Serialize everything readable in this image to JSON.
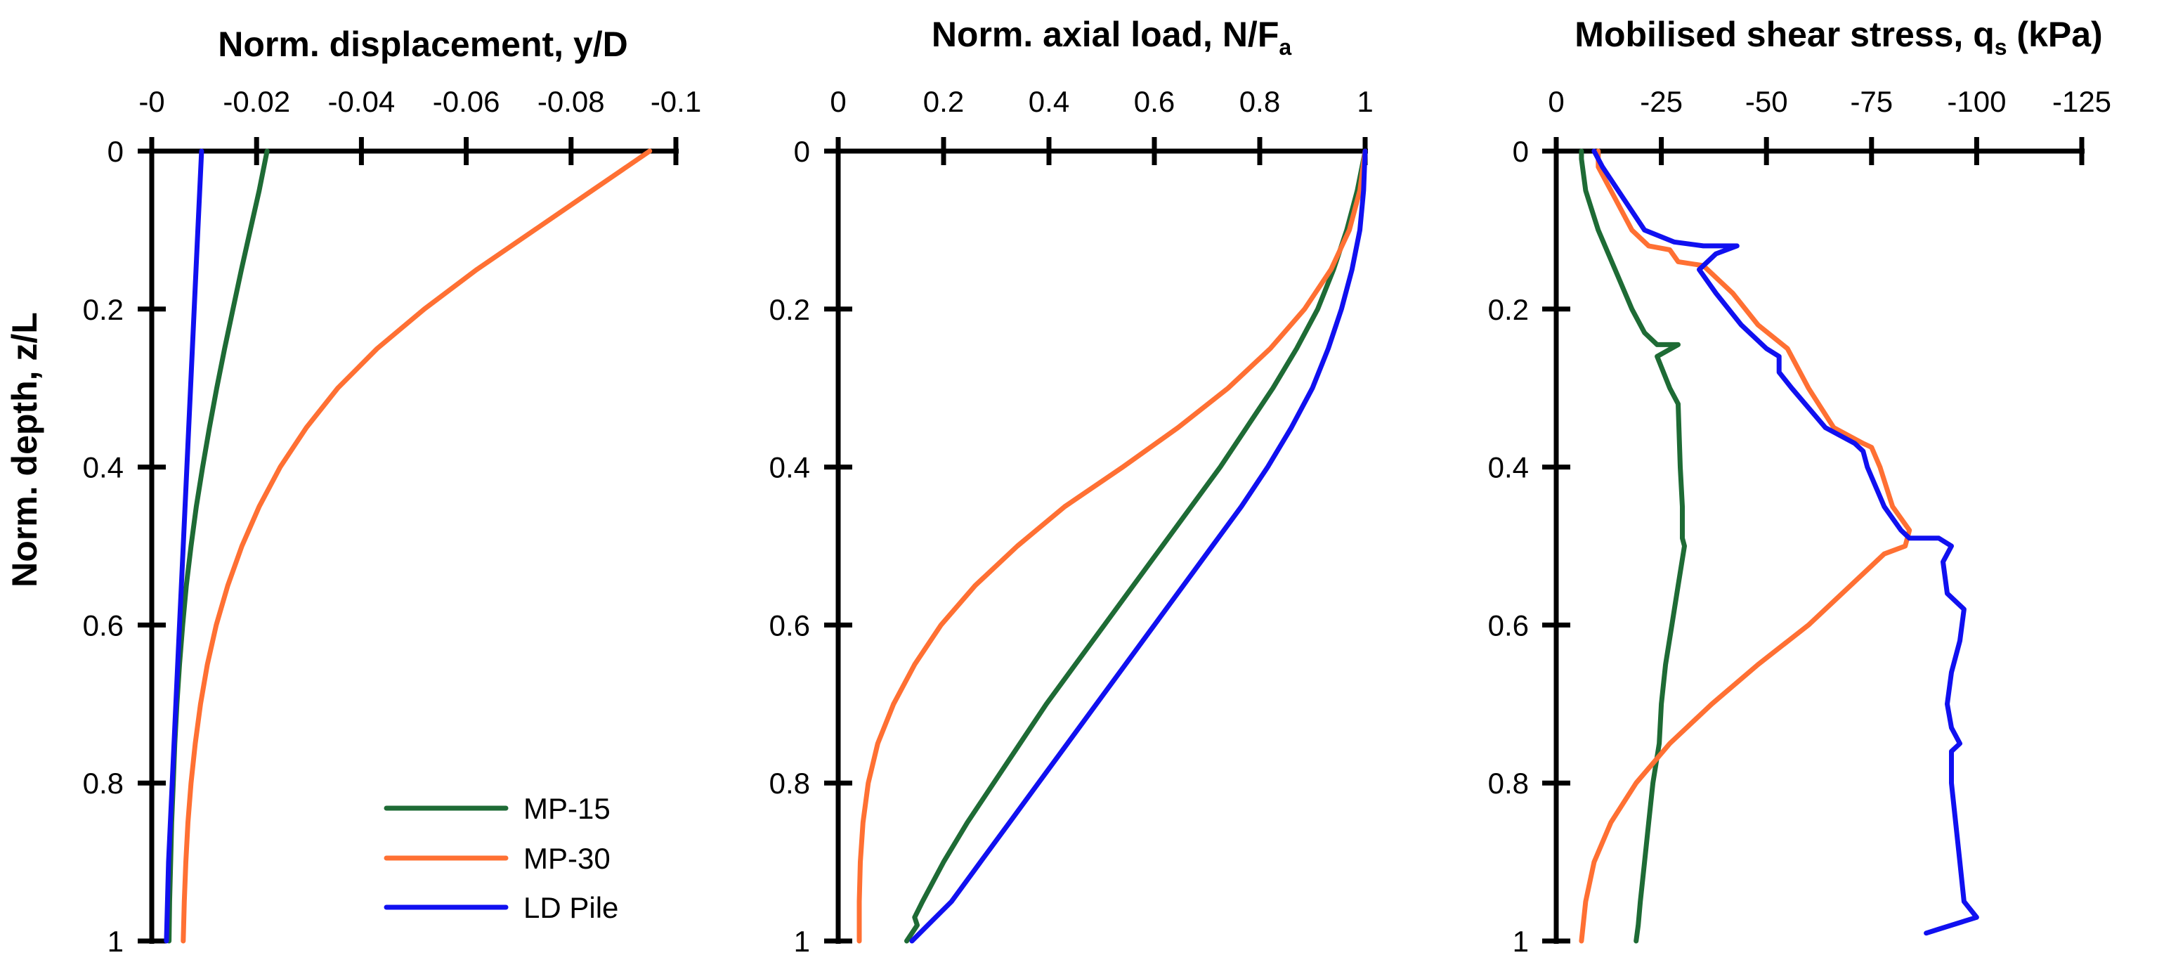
{
  "chart_data": [
    {
      "type": "line",
      "title": "Norm. displacement, y/D",
      "xlabel": "Norm. displacement, y/D",
      "ylabel": "Norm. depth, z/L",
      "xlim": [
        0,
        -0.1
      ],
      "ylim": [
        0,
        1
      ],
      "xticks": [
        0,
        -0.02,
        -0.04,
        -0.06,
        -0.08,
        -0.1
      ],
      "xtick_labels": [
        "-0",
        "-0.02",
        "-0.04",
        "-0.06",
        "-0.08",
        "-0.1"
      ],
      "yticks": [
        0,
        0.2,
        0.4,
        0.6,
        0.8,
        1
      ],
      "ytick_labels": [
        "0",
        "0.2",
        "0.4",
        "0.6",
        "0.8",
        "1"
      ],
      "x_axis_position": "top",
      "y_inverted": true,
      "legend": {
        "position": "bottom-right",
        "entries": [
          "MP-15",
          "MP-30",
          "LD Pile"
        ]
      },
      "series": [
        {
          "name": "MP-15",
          "color": "#1e6b35",
          "points": [
            [
              -0.022,
              0
            ],
            [
              -0.0205,
              0.05
            ],
            [
              -0.0188,
              0.1
            ],
            [
              -0.0171,
              0.15
            ],
            [
              -0.0155,
              0.2
            ],
            [
              -0.0139,
              0.25
            ],
            [
              -0.0124,
              0.3
            ],
            [
              -0.011,
              0.35
            ],
            [
              -0.0097,
              0.4
            ],
            [
              -0.0085,
              0.45
            ],
            [
              -0.0075,
              0.5
            ],
            [
              -0.0066,
              0.55
            ],
            [
              -0.0059,
              0.6
            ],
            [
              -0.0053,
              0.65
            ],
            [
              -0.0048,
              0.7
            ],
            [
              -0.0044,
              0.75
            ],
            [
              -0.0041,
              0.8
            ],
            [
              -0.0038,
              0.85
            ],
            [
              -0.0036,
              0.9
            ],
            [
              -0.0034,
              0.95
            ],
            [
              -0.0033,
              1.0
            ]
          ]
        },
        {
          "name": "MP-30",
          "color": "#ff7033",
          "points": [
            [
              -0.095,
              0
            ],
            [
              -0.084,
              0.05
            ],
            [
              -0.073,
              0.1
            ],
            [
              -0.062,
              0.15
            ],
            [
              -0.052,
              0.2
            ],
            [
              -0.043,
              0.25
            ],
            [
              -0.0355,
              0.3
            ],
            [
              -0.0295,
              0.35
            ],
            [
              -0.0245,
              0.4
            ],
            [
              -0.0205,
              0.45
            ],
            [
              -0.0172,
              0.5
            ],
            [
              -0.0145,
              0.55
            ],
            [
              -0.0123,
              0.6
            ],
            [
              -0.0106,
              0.65
            ],
            [
              -0.0093,
              0.7
            ],
            [
              -0.0083,
              0.75
            ],
            [
              -0.0075,
              0.8
            ],
            [
              -0.0069,
              0.85
            ],
            [
              -0.0065,
              0.9
            ],
            [
              -0.0062,
              0.95
            ],
            [
              -0.006,
              1.0
            ]
          ]
        },
        {
          "name": "LD Pile",
          "color": "#1010f0",
          "points": [
            [
              -0.0095,
              0
            ],
            [
              -0.0088,
              0.1
            ],
            [
              -0.0081,
              0.2
            ],
            [
              -0.0074,
              0.3
            ],
            [
              -0.0067,
              0.4
            ],
            [
              -0.006,
              0.5
            ],
            [
              -0.0053,
              0.6
            ],
            [
              -0.0046,
              0.7
            ],
            [
              -0.0039,
              0.8
            ],
            [
              -0.0032,
              0.9
            ],
            [
              -0.0028,
              1.0
            ]
          ]
        }
      ]
    },
    {
      "type": "line",
      "title": "Norm. axial load, N/F",
      "title_subscript": "a",
      "xlabel": "Norm. axial load, N/Fa",
      "ylabel": "Norm. depth, z/L",
      "xlim": [
        0,
        1
      ],
      "ylim": [
        0,
        1
      ],
      "xticks": [
        0,
        0.2,
        0.4,
        0.6,
        0.8,
        1
      ],
      "xtick_labels": [
        "0",
        "0.2",
        "0.4",
        "0.6",
        "0.8",
        "1"
      ],
      "yticks": [
        0,
        0.2,
        0.4,
        0.6,
        0.8,
        1
      ],
      "ytick_labels": [
        "0",
        "0.2",
        "0.4",
        "0.6",
        "0.8",
        "1"
      ],
      "x_axis_position": "top",
      "y_inverted": true,
      "series": [
        {
          "name": "MP-15",
          "color": "#1e6b35",
          "points": [
            [
              1.0,
              0
            ],
            [
              0.985,
              0.05
            ],
            [
              0.965,
              0.1
            ],
            [
              0.94,
              0.15
            ],
            [
              0.91,
              0.2
            ],
            [
              0.87,
              0.25
            ],
            [
              0.825,
              0.3
            ],
            [
              0.775,
              0.35
            ],
            [
              0.725,
              0.4
            ],
            [
              0.67,
              0.45
            ],
            [
              0.615,
              0.5
            ],
            [
              0.56,
              0.55
            ],
            [
              0.505,
              0.6
            ],
            [
              0.45,
              0.65
            ],
            [
              0.395,
              0.7
            ],
            [
              0.345,
              0.75
            ],
            [
              0.295,
              0.8
            ],
            [
              0.245,
              0.85
            ],
            [
              0.2,
              0.9
            ],
            [
              0.16,
              0.95
            ],
            [
              0.145,
              0.97
            ],
            [
              0.15,
              0.98
            ],
            [
              0.13,
              1.0
            ]
          ]
        },
        {
          "name": "MP-30",
          "color": "#ff7033",
          "points": [
            [
              1.0,
              0
            ],
            [
              0.99,
              0.05
            ],
            [
              0.97,
              0.1
            ],
            [
              0.935,
              0.15
            ],
            [
              0.885,
              0.2
            ],
            [
              0.82,
              0.25
            ],
            [
              0.74,
              0.3
            ],
            [
              0.645,
              0.35
            ],
            [
              0.54,
              0.4
            ],
            [
              0.43,
              0.45
            ],
            [
              0.34,
              0.5
            ],
            [
              0.26,
              0.55
            ],
            [
              0.195,
              0.6
            ],
            [
              0.145,
              0.65
            ],
            [
              0.105,
              0.7
            ],
            [
              0.075,
              0.75
            ],
            [
              0.057,
              0.8
            ],
            [
              0.047,
              0.85
            ],
            [
              0.042,
              0.9
            ],
            [
              0.04,
              0.95
            ],
            [
              0.04,
              1.0
            ]
          ]
        },
        {
          "name": "LD Pile",
          "color": "#1010f0",
          "points": [
            [
              1.0,
              0
            ],
            [
              0.997,
              0.05
            ],
            [
              0.99,
              0.1
            ],
            [
              0.975,
              0.15
            ],
            [
              0.955,
              0.2
            ],
            [
              0.93,
              0.25
            ],
            [
              0.9,
              0.3
            ],
            [
              0.86,
              0.35
            ],
            [
              0.815,
              0.4
            ],
            [
              0.765,
              0.45
            ],
            [
              0.71,
              0.5
            ],
            [
              0.655,
              0.55
            ],
            [
              0.6,
              0.6
            ],
            [
              0.545,
              0.65
            ],
            [
              0.49,
              0.7
            ],
            [
              0.435,
              0.75
            ],
            [
              0.38,
              0.8
            ],
            [
              0.325,
              0.85
            ],
            [
              0.27,
              0.9
            ],
            [
              0.215,
              0.95
            ],
            [
              0.17,
              0.98
            ],
            [
              0.14,
              1.0
            ]
          ]
        }
      ]
    },
    {
      "type": "line",
      "title": "Mobilised shear stress, q",
      "title_subscript": "s",
      "title_suffix": " (kPa)",
      "xlabel": "Mobilised shear stress, qs (kPa)",
      "ylabel": "Norm. depth, z/L",
      "xlim": [
        0,
        -125
      ],
      "ylim": [
        0,
        1
      ],
      "xticks": [
        0,
        -25,
        -50,
        -75,
        -100,
        -125
      ],
      "xtick_labels": [
        "0",
        "-25",
        "-50",
        "-75",
        "-100",
        "-125"
      ],
      "yticks": [
        0,
        0.2,
        0.4,
        0.6,
        0.8,
        1
      ],
      "ytick_labels": [
        "0",
        "0.2",
        "0.4",
        "0.6",
        "0.8",
        "1"
      ],
      "x_axis_position": "top",
      "y_inverted": true,
      "series": [
        {
          "name": "MP-15",
          "color": "#1e6b35",
          "points": [
            [
              -6,
              0
            ],
            [
              -6,
              0.01
            ],
            [
              -7,
              0.05
            ],
            [
              -10,
              0.1
            ],
            [
              -14,
              0.15
            ],
            [
              -18,
              0.2
            ],
            [
              -21,
              0.23
            ],
            [
              -24,
              0.245
            ],
            [
              -29,
              0.245
            ],
            [
              -24,
              0.26
            ],
            [
              -27,
              0.3
            ],
            [
              -29,
              0.32
            ],
            [
              -29.5,
              0.4
            ],
            [
              -30,
              0.45
            ],
            [
              -30,
              0.49
            ],
            [
              -30.5,
              0.5
            ],
            [
              -29,
              0.55
            ],
            [
              -27.5,
              0.6
            ],
            [
              -26,
              0.65
            ],
            [
              -25,
              0.7
            ],
            [
              -24.5,
              0.75
            ],
            [
              -23,
              0.8
            ],
            [
              -22,
              0.85
            ],
            [
              -21,
              0.9
            ],
            [
              -20,
              0.95
            ],
            [
              -19.5,
              0.98
            ],
            [
              -19,
              1.0
            ]
          ]
        },
        {
          "name": "MP-30",
          "color": "#ff7033",
          "points": [
            [
              -10,
              0
            ],
            [
              -10,
              0.02
            ],
            [
              -14,
              0.06
            ],
            [
              -18,
              0.1
            ],
            [
              -22,
              0.12
            ],
            [
              -27,
              0.125
            ],
            [
              -29,
              0.14
            ],
            [
              -35,
              0.145
            ],
            [
              -42,
              0.18
            ],
            [
              -48,
              0.22
            ],
            [
              -55,
              0.25
            ],
            [
              -60,
              0.3
            ],
            [
              -66,
              0.35
            ],
            [
              -73,
              0.37
            ],
            [
              -75,
              0.375
            ],
            [
              -77,
              0.4
            ],
            [
              -80,
              0.45
            ],
            [
              -84,
              0.48
            ],
            [
              -83,
              0.5
            ],
            [
              -78,
              0.51
            ],
            [
              -70,
              0.55
            ],
            [
              -60,
              0.6
            ],
            [
              -48,
              0.65
            ],
            [
              -37,
              0.7
            ],
            [
              -27,
              0.75
            ],
            [
              -19,
              0.8
            ],
            [
              -13,
              0.85
            ],
            [
              -9,
              0.9
            ],
            [
              -7,
              0.95
            ],
            [
              -6,
              1.0
            ]
          ]
        },
        {
          "name": "LD Pile",
          "color": "#1010f0",
          "points": [
            [
              -9,
              0
            ],
            [
              -11,
              0.02
            ],
            [
              -16,
              0.06
            ],
            [
              -21,
              0.1
            ],
            [
              -28,
              0.115
            ],
            [
              -35,
              0.12
            ],
            [
              -43,
              0.12
            ],
            [
              -38,
              0.13
            ],
            [
              -34,
              0.15
            ],
            [
              -38,
              0.18
            ],
            [
              -44,
              0.22
            ],
            [
              -50,
              0.25
            ],
            [
              -53,
              0.26
            ],
            [
              -53,
              0.28
            ],
            [
              -56,
              0.3
            ],
            [
              -64,
              0.35
            ],
            [
              -71,
              0.37
            ],
            [
              -73,
              0.38
            ],
            [
              -74,
              0.4
            ],
            [
              -78,
              0.45
            ],
            [
              -82,
              0.48
            ],
            [
              -84,
              0.49
            ],
            [
              -91,
              0.49
            ],
            [
              -94,
              0.5
            ],
            [
              -92,
              0.52
            ],
            [
              -93,
              0.56
            ],
            [
              -97,
              0.58
            ],
            [
              -96,
              0.62
            ],
            [
              -94,
              0.66
            ],
            [
              -93,
              0.7
            ],
            [
              -94,
              0.73
            ],
            [
              -96,
              0.75
            ],
            [
              -94,
              0.76
            ],
            [
              -94,
              0.8
            ],
            [
              -95,
              0.85
            ],
            [
              -96,
              0.9
            ],
            [
              -97,
              0.95
            ],
            [
              -100,
              0.97
            ],
            [
              -91,
              0.985
            ],
            [
              -88,
              0.99
            ]
          ]
        }
      ]
    }
  ]
}
